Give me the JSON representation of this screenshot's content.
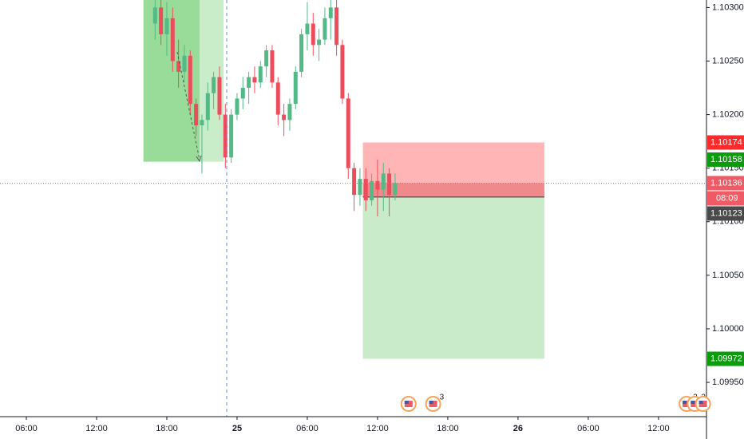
{
  "chart_data": {
    "type": "candlestick",
    "x": [
      17,
      17.5,
      18,
      18.5,
      19,
      19.5,
      20,
      20.5,
      21,
      21.5,
      22,
      22.5,
      23,
      23.5,
      24,
      24.5,
      25,
      25.5,
      26,
      26.5,
      27,
      27.5,
      28,
      28.5,
      29,
      29.5,
      30,
      30.5,
      31,
      31.5,
      32,
      32.5,
      33,
      33.5,
      34,
      34.5,
      35,
      35.5,
      36,
      36.5,
      37,
      37.5
    ],
    "open": [
      1.10285,
      1.103,
      1.10275,
      1.1029,
      1.1025,
      1.1024,
      1.10255,
      1.1021,
      1.1019,
      1.10195,
      1.1022,
      1.10235,
      1.102,
      1.1016,
      1.102,
      1.10215,
      1.10225,
      1.10235,
      1.1023,
      1.10245,
      1.1026,
      1.1023,
      1.102,
      1.10195,
      1.1021,
      1.1024,
      1.10275,
      1.10285,
      1.10265,
      1.1027,
      1.1029,
      1.103,
      1.10265,
      1.10215,
      1.1015,
      1.10125,
      1.1014,
      1.1012,
      1.10138,
      1.1013,
      1.10145,
      1.10125
    ],
    "high": [
      1.1032,
      1.10315,
      1.10305,
      1.103,
      1.1027,
      1.10265,
      1.1026,
      1.10215,
      1.102,
      1.1023,
      1.1024,
      1.10245,
      1.1021,
      1.10205,
      1.1022,
      1.10235,
      1.1024,
      1.10245,
      1.1025,
      1.10265,
      1.10265,
      1.10235,
      1.1021,
      1.10215,
      1.10245,
      1.1028,
      1.10305,
      1.10295,
      1.1028,
      1.103,
      1.1031,
      1.1031,
      1.1027,
      1.1022,
      1.10155,
      1.1015,
      1.1015,
      1.10145,
      1.10158,
      1.10155,
      1.1015,
      1.10145
    ],
    "low": [
      1.1027,
      1.10265,
      1.10255,
      1.1024,
      1.10225,
      1.1023,
      1.102,
      1.1018,
      1.10145,
      1.10185,
      1.10205,
      1.10195,
      1.1015,
      1.10155,
      1.10195,
      1.10205,
      1.1021,
      1.1022,
      1.10225,
      1.10235,
      1.10225,
      1.1019,
      1.1018,
      1.10185,
      1.10205,
      1.10235,
      1.1026,
      1.10255,
      1.1025,
      1.10265,
      1.1027,
      1.10255,
      1.1021,
      1.1014,
      1.1011,
      1.10115,
      1.1011,
      1.10115,
      1.10105,
      1.1011,
      1.10105,
      1.1012
    ],
    "close": [
      1.103,
      1.10275,
      1.1029,
      1.1025,
      1.1024,
      1.10255,
      1.1021,
      1.1019,
      1.10195,
      1.1022,
      1.10235,
      1.102,
      1.1016,
      1.102,
      1.10215,
      1.10225,
      1.10235,
      1.1023,
      1.10245,
      1.1026,
      1.1023,
      1.102,
      1.10195,
      1.1021,
      1.1024,
      1.10275,
      1.10285,
      1.10265,
      1.1027,
      1.1029,
      1.103,
      1.10265,
      1.10215,
      1.1015,
      1.10125,
      1.1014,
      1.1012,
      1.10138,
      1.1013,
      1.10145,
      1.10125,
      1.10136
    ],
    "up_color": "#53b987",
    "down_color": "#eb4d5c",
    "xlim": [
      3.75,
      64.1
    ],
    "xticks": [
      {
        "value": 6,
        "label": "06:00"
      },
      {
        "value": 12,
        "label": "12:00"
      },
      {
        "value": 18,
        "label": "18:00"
      },
      {
        "value": 24,
        "label": "25"
      },
      {
        "value": 30,
        "label": "06:00"
      },
      {
        "value": 36,
        "label": "12:00"
      },
      {
        "value": 42,
        "label": "18:00"
      },
      {
        "value": 48,
        "label": "26"
      },
      {
        "value": 54,
        "label": "06:00"
      },
      {
        "value": 60,
        "label": "12:00"
      }
    ],
    "ylim": [
      1.09918,
      1.10307
    ],
    "yticks": [
      {
        "value": 1.0995,
        "label": "1.09950"
      },
      {
        "value": 1.1,
        "label": "1.10000"
      },
      {
        "value": 1.1005,
        "label": "1.10050"
      },
      {
        "value": 1.101,
        "label": "1.10100"
      },
      {
        "value": 1.1015,
        "label": "1.10150"
      },
      {
        "value": 1.102,
        "label": "1.10200"
      },
      {
        "value": 1.1025,
        "label": "1.10250"
      },
      {
        "value": 1.103,
        "label": "1.10300"
      }
    ],
    "grid": false,
    "earlier_position": {
      "x": [
        16,
        20.8,
        22.85
      ],
      "top": 1.1033,
      "bottom": 1.10156,
      "colors": [
        "#99dc99",
        "#c9ecc9"
      ]
    },
    "position_tool": {
      "x": [
        34.75,
        50.25
      ],
      "stop": 1.10174,
      "entry": 1.10123,
      "target": 1.09972,
      "stop_color": "#ff2b2b",
      "entry_color": "#4a4a4a",
      "target_color": "#0b9c0b"
    },
    "high_label": {
      "value": 1.10158,
      "color": "#0b9c0b"
    },
    "last_price": {
      "value": 1.10136,
      "color": "#ef5a64"
    },
    "countdown": "08:09",
    "events": [
      {
        "x": 38.65
      },
      {
        "x": 40.75,
        "count": "3"
      },
      {
        "x": 62.4,
        "count": "2"
      },
      {
        "x": 63.1,
        "count": "2"
      },
      {
        "x": 63.8
      }
    ]
  }
}
